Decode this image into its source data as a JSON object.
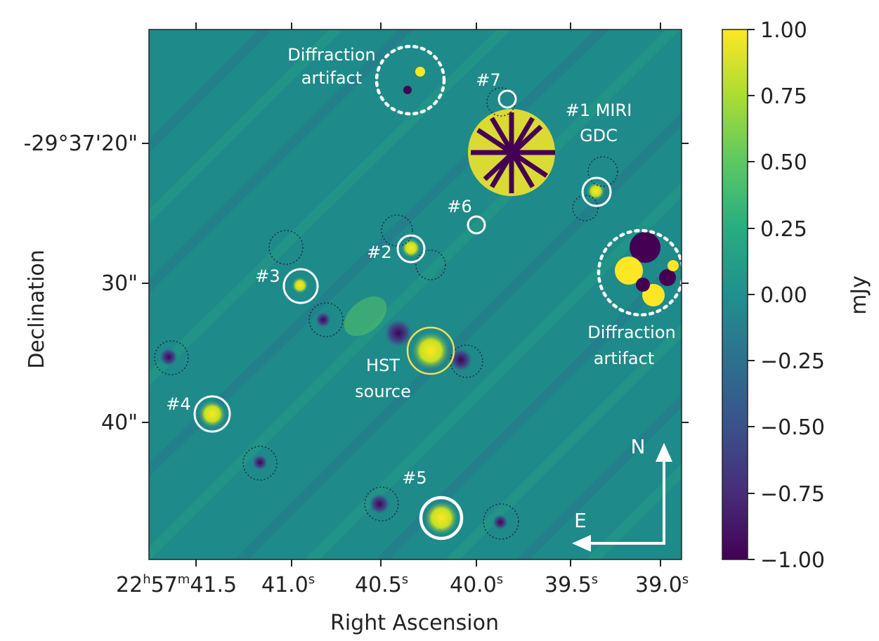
{
  "figure": {
    "xlabel": "Right Ascension",
    "ylabel": "Declination",
    "x_ticks": [
      {
        "main": "22",
        "s1": "h",
        "mid": "57",
        "s2": "m",
        "tail": "41.5"
      },
      {
        "main": "41.0",
        "s1": "s"
      },
      {
        "main": "40.5",
        "s1": "s"
      },
      {
        "main": "40.0",
        "s1": "s"
      },
      {
        "main": "39.5",
        "s1": "s"
      },
      {
        "main": "39.0",
        "s1": "s"
      }
    ],
    "y_ticks": [
      "-29°37'20\"",
      "30\"",
      "40\""
    ],
    "colorbar": {
      "label": "mJy",
      "ticks": [
        "1.00",
        "0.75",
        "0.50",
        "0.25",
        "0.00",
        "−0.25",
        "−0.50",
        "−0.75",
        "−1.00"
      ],
      "range": [
        -1.0,
        1.0
      ],
      "colormap": "viridis",
      "colors": [
        "#440154",
        "#472c7a",
        "#3b518b",
        "#2c718e",
        "#21908d",
        "#27ad81",
        "#5cc863",
        "#aadc32",
        "#fde725"
      ]
    },
    "annotations": {
      "diffraction_top_line1": "Diffraction",
      "diffraction_top_line2": "artifact",
      "diffraction_right_line1": "Diffraction",
      "diffraction_right_line2": "artifact",
      "s7": "#7",
      "s1_line1": "#1 MIRI",
      "s1_line2": "GDC",
      "s6": "#6",
      "s2": "#2",
      "s3": "#3",
      "hst_line1": "HST",
      "hst_line2": "source",
      "s4": "#4",
      "s5": "#5"
    },
    "compass": {
      "north": "N",
      "east": "E"
    },
    "colors": {
      "source_circle": "#ffffff",
      "hst_circle": "#f2e34a",
      "background": "#1f8a8a"
    }
  }
}
